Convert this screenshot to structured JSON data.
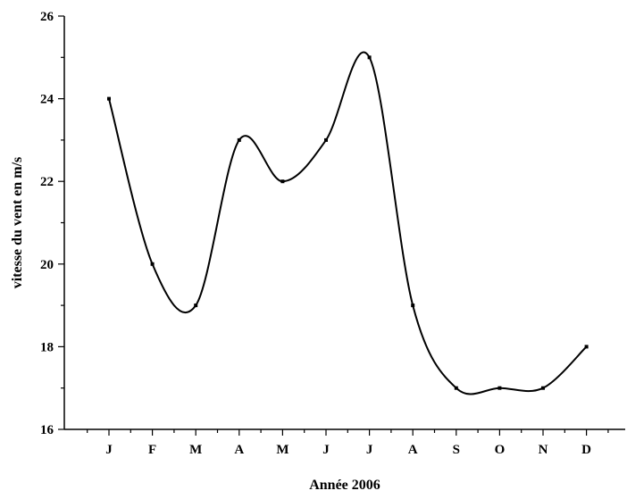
{
  "chart_data": {
    "type": "line",
    "title": "",
    "xlabel": "Année 2006",
    "ylabel": "vitesse du vent en m/s",
    "categories": [
      "J",
      "F",
      "M",
      "A",
      "M",
      "J",
      "J",
      "A",
      "S",
      "O",
      "N",
      "D"
    ],
    "values": [
      24,
      20,
      19,
      23,
      22,
      23,
      25,
      19,
      17,
      17,
      17,
      18
    ],
    "ylim": [
      16,
      26
    ],
    "yticks": [
      16,
      18,
      20,
      22,
      24,
      26
    ],
    "grid": false,
    "legend": "none"
  }
}
